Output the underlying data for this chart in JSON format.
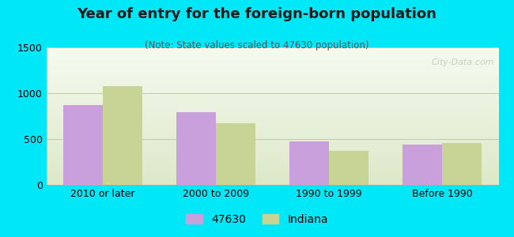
{
  "title": "Year of entry for the foreign-born population",
  "subtitle": "(Note: State values scaled to 47630 population)",
  "categories": [
    "2010 or later",
    "2000 to 2009",
    "1990 to 1999",
    "Before 1990"
  ],
  "series_47630": [
    870,
    790,
    475,
    440
  ],
  "series_indiana": [
    1075,
    670,
    375,
    455
  ],
  "color_47630": "#c9a0dc",
  "color_indiana": "#c8d496",
  "ylim": [
    0,
    1500
  ],
  "yticks": [
    0,
    500,
    1000,
    1500
  ],
  "bar_width": 0.35,
  "outer_background": "#00e8f8",
  "plot_bg_top": "#f5faf0",
  "plot_bg_bottom": "#dde8c8",
  "legend_47630": "47630",
  "legend_indiana": "Indiana",
  "title_fontsize": 13,
  "subtitle_fontsize": 8.5,
  "tick_fontsize": 9,
  "legend_fontsize": 10,
  "watermark": "City-Data.com"
}
